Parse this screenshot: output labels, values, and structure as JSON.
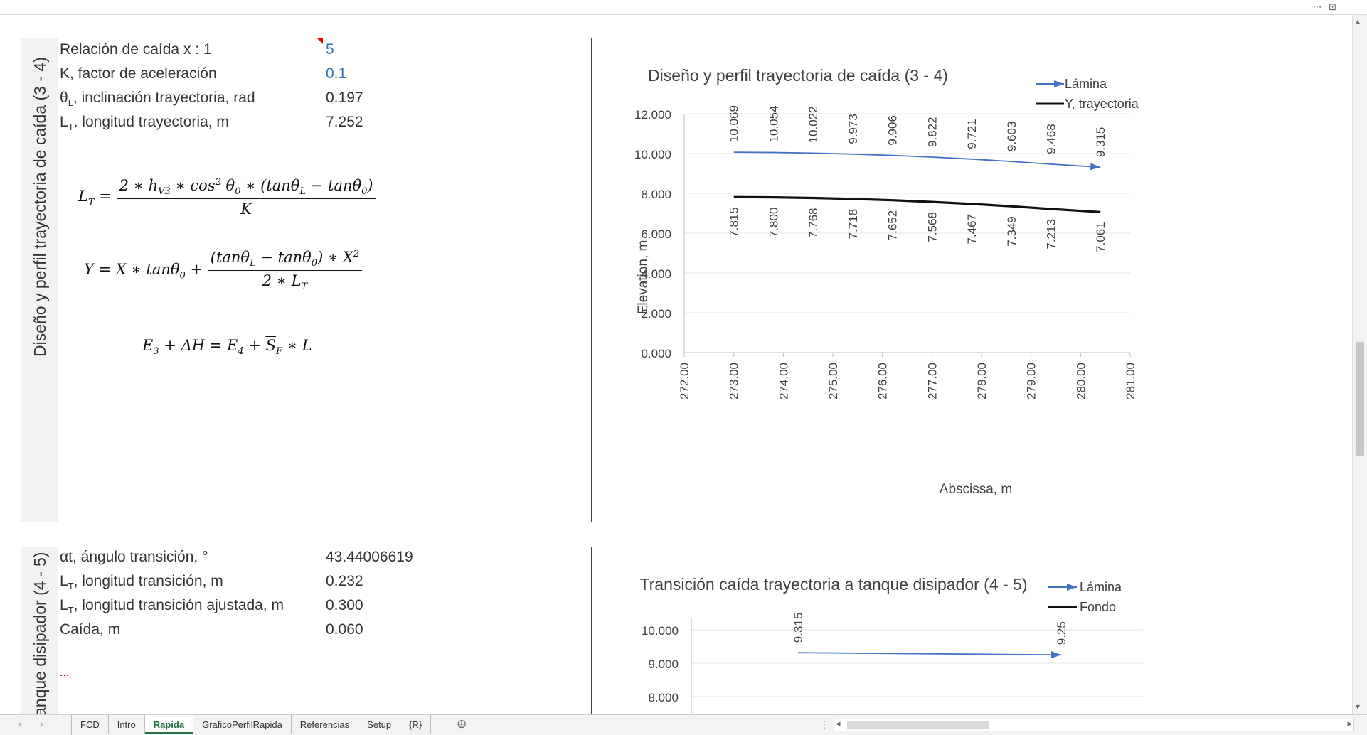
{
  "window": {
    "top_icons": "⋯  ⊡"
  },
  "section1": {
    "vertical_title": "Diseño y perfil trayectoria de caída (3 - 4)",
    "rows": [
      {
        "label": "Relación de caída x : 1",
        "value": "5"
      },
      {
        "label": "K, factor de aceleración",
        "value": "0.1"
      },
      {
        "label_main": "θ",
        "label_sub": "L",
        "label_rest": ", inclinación trayectoria, rad",
        "value": "0.197"
      },
      {
        "label_main": "L",
        "label_sub": "T",
        "label_rest": ". longitud trayectoria, m",
        "value": "7.252"
      }
    ]
  },
  "section2": {
    "vertical_title": "anque disipador (4 - 5)",
    "rows": [
      {
        "label": "αt, ángulo transición, °",
        "value": "43.44006619"
      },
      {
        "label_main": "L",
        "label_sub": "T",
        "label_rest": ", longitud transición, m",
        "value": "0.232"
      },
      {
        "label_main": "L",
        "label_sub": "T",
        "label_rest": ", longitud transición ajustada, m",
        "value": "0.300"
      },
      {
        "label": "Caída, m",
        "value": "0.060"
      }
    ],
    "ellipsis": "..."
  },
  "chart_data": [
    {
      "type": "line",
      "title": "Diseño y perfil trayectoria de caída (3 - 4)",
      "xlabel": "Abscissa, m",
      "ylabel": "Elevation, m",
      "xlim": [
        272,
        281
      ],
      "ylim": [
        0,
        12
      ],
      "x_ticks": [
        "272.00",
        "273.00",
        "274.00",
        "275.00",
        "276.00",
        "277.00",
        "278.00",
        "279.00",
        "280.00",
        "281.00"
      ],
      "y_ticks": [
        "0.000",
        "2.000",
        "4.000",
        "6.000",
        "8.000",
        "10.000",
        "12.000"
      ],
      "legend_position": "top-right",
      "x": [
        273.0,
        273.8,
        274.6,
        275.4,
        276.2,
        277.0,
        277.8,
        278.6,
        279.4,
        280.4
      ],
      "series": [
        {
          "name": "Lámina",
          "color": "#4472c4",
          "values": [
            10.069,
            10.054,
            10.022,
            9.973,
            9.906,
            9.822,
            9.721,
            9.603,
            9.468,
            9.315
          ],
          "labels": [
            "10.069",
            "10.054",
            "10.022",
            "9.973",
            "9.906",
            "9.822",
            "9.721",
            "9.603",
            "9.468",
            "9.315"
          ]
        },
        {
          "name": "Y, trayectoria",
          "color": "#111111",
          "values": [
            7.815,
            7.8,
            7.768,
            7.718,
            7.652,
            7.568,
            7.467,
            7.349,
            7.213,
            7.061
          ],
          "labels": [
            "7.815",
            "7.800",
            "7.768",
            "7.718",
            "7.652",
            "7.568",
            "7.467",
            "7.349",
            "7.213",
            "7.061"
          ]
        }
      ]
    },
    {
      "type": "line",
      "title": "Transición caída trayectoria a tanque disipador (4 - 5)",
      "y_ticks": [
        "8.000",
        "9.000",
        "10.000"
      ],
      "legend_position": "top-right",
      "series": [
        {
          "name": "Lámina",
          "color": "#4472c4",
          "values": [
            9.315,
            9.25
          ],
          "labels": [
            "9.315",
            "9.25"
          ]
        },
        {
          "name": "Fondo",
          "color": "#111111",
          "values": []
        }
      ]
    }
  ],
  "sheet_tabs": [
    "FCD",
    "Intro",
    "Rapida",
    "GraficoPerfilRapida",
    "Referencias",
    "Setup",
    "{R}"
  ],
  "active_tab": "Rapida",
  "nav": {
    "prev": "‹",
    "next": "›",
    "add": "⊕",
    "more": "⋮",
    "left_arrow": "◂",
    "right_arrow": "▸",
    "up_arrow": "▴",
    "down_arrow": "▾"
  }
}
